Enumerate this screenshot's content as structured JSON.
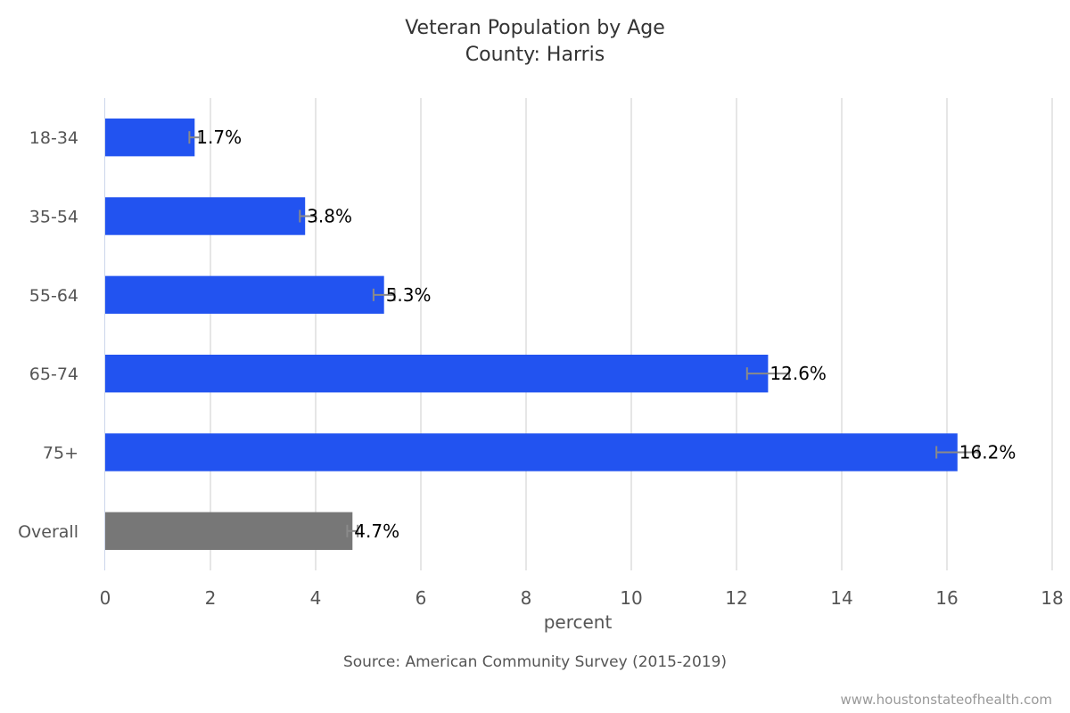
{
  "chart_data": {
    "type": "bar",
    "orientation": "horizontal",
    "title": "Veteran Population by Age",
    "subtitle": "County: Harris",
    "xlabel": "percent",
    "xlim": [
      0,
      18
    ],
    "xticks": [
      0,
      2,
      4,
      6,
      8,
      10,
      12,
      14,
      16,
      18
    ],
    "grid": true,
    "categories": [
      "18-34",
      "35-54",
      "55-64",
      "65-74",
      "75+",
      "Overall"
    ],
    "values": [
      1.7,
      3.8,
      5.3,
      12.6,
      16.2,
      4.7
    ],
    "data_labels": [
      "1.7%",
      "3.8%",
      "5.3%",
      "12.6%",
      "16.2%",
      "4.7%"
    ],
    "error_low": [
      1.6,
      3.7,
      5.1,
      12.2,
      15.8,
      4.6
    ],
    "error_high": [
      1.8,
      4.0,
      5.5,
      13.0,
      16.6,
      4.8
    ],
    "bar_colors": [
      "#2253f0",
      "#2253f0",
      "#2253f0",
      "#2253f0",
      "#2253f0",
      "#777777"
    ],
    "error_bar_color": "#8a8a8a",
    "source": "Source: American Community Survey (2015-2019)"
  },
  "credit": "www.houstonstateofhealth.com"
}
